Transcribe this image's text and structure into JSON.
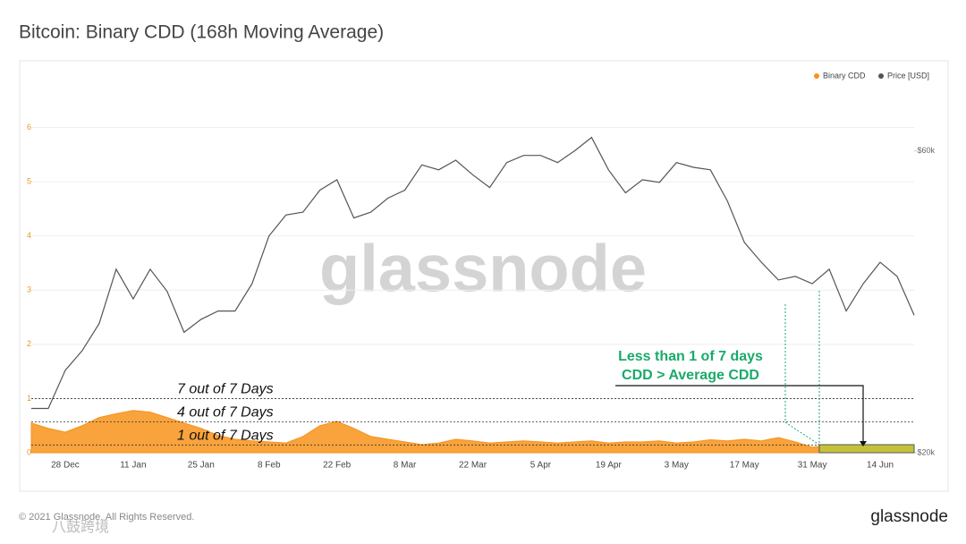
{
  "chart_data": {
    "type": "area-line",
    "title": "Bitcoin: Binary CDD (168h Moving Average)",
    "categories": [
      null,
      null,
      "28 Dec",
      null,
      null,
      null,
      "11 Jan",
      null,
      null,
      null,
      "25 Jan",
      null,
      null,
      null,
      "8 Feb",
      null,
      null,
      null,
      "22 Feb",
      null,
      null,
      null,
      "8 Mar",
      null,
      null,
      null,
      "22 Mar",
      null,
      null,
      null,
      "5 Apr",
      null,
      null,
      null,
      "19 Apr",
      null,
      null,
      null,
      "3 May",
      null,
      null,
      null,
      "17 May",
      null,
      null,
      null,
      "31 May",
      null,
      null,
      null,
      "14 Jun",
      null,
      null
    ],
    "series": [
      {
        "name": "Binary CDD",
        "color": "#f7931a",
        "values": [
          0.55,
          0.45,
          0.38,
          0.5,
          0.65,
          0.72,
          0.78,
          0.75,
          0.65,
          0.55,
          0.45,
          0.32,
          0.25,
          0.22,
          0.2,
          0.18,
          0.3,
          0.5,
          0.58,
          0.45,
          0.3,
          0.25,
          0.2,
          0.15,
          0.18,
          0.25,
          0.22,
          0.18,
          0.2,
          0.22,
          0.2,
          0.18,
          0.2,
          0.22,
          0.18,
          0.2,
          0.2,
          0.22,
          0.18,
          0.2,
          0.24,
          0.22,
          0.25,
          0.22,
          0.28,
          0.2,
          0.1,
          0.14,
          0.14,
          0.14,
          0.14,
          0.14,
          0.14
        ]
      },
      {
        "name": "Price [USD]",
        "color": "#555555",
        "axis": "y2",
        "values": [
          23500,
          23500,
          27000,
          29000,
          32000,
          39000,
          35000,
          39000,
          36000,
          31000,
          32500,
          33500,
          33500,
          37000,
          44000,
          47500,
          48000,
          52000,
          54000,
          47000,
          48000,
          50500,
          52000,
          57000,
          56000,
          58000,
          55000,
          52500,
          57500,
          59000,
          59000,
          57500,
          60000,
          63000,
          56000,
          51500,
          54000,
          53500,
          57500,
          56500,
          56000,
          50000,
          43000,
          40000,
          37500,
          38000,
          37000,
          39000,
          33500,
          37000,
          40000,
          38000,
          33000
        ]
      }
    ],
    "ylim": [
      0,
      6.9
    ],
    "yticks": [
      0,
      1,
      2,
      3,
      4,
      5,
      6
    ],
    "y2lim": [
      20000,
      78000
    ],
    "y2scale": "log",
    "y2ticks": [
      {
        "value": 20000,
        "label": "$20k"
      },
      {
        "value": 60000,
        "label": "$60k"
      }
    ],
    "grid": true,
    "legend": "top-right",
    "reference_lines": [
      {
        "value": 1,
        "label": "7 out of 7 Days"
      },
      {
        "value": 0.571,
        "label": "4 out of 7 Days"
      },
      {
        "value": 0.143,
        "label": "1 out of 7 Days"
      }
    ],
    "annotation": [
      "Less than 1 of 7 days",
      "CDD > Average CDD"
    ],
    "watermark": "glassnode",
    "footer": "© 2021 Glassnode. All Rights Reserved.",
    "logo": "glassnode",
    "source_watermark": "八鼓跨境"
  }
}
